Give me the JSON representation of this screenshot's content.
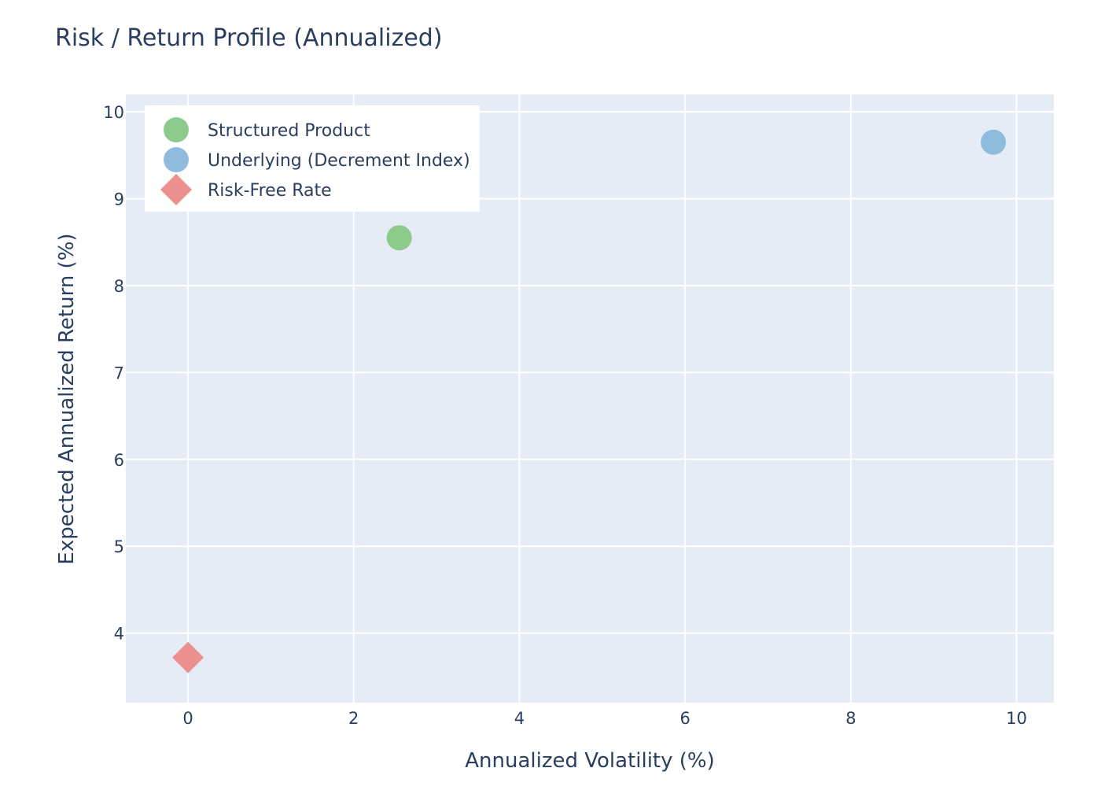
{
  "chart_data": {
    "type": "scatter",
    "title": "Risk / Return Profile (Annualized)",
    "xlabel": "Annualized Volatility (%)",
    "ylabel": "Expected Annualized Return (%)",
    "xlim": [
      -0.75,
      10.45
    ],
    "ylim": [
      3.2,
      10.2
    ],
    "xticks": [
      0,
      2,
      4,
      6,
      8,
      10
    ],
    "yticks": [
      4,
      5,
      6,
      7,
      8,
      9,
      10
    ],
    "grid": true,
    "legend_position": "top-left",
    "series": [
      {
        "name": "Structured Product",
        "marker": "circle",
        "color": "#8ccb8c",
        "points": [
          {
            "x": 2.55,
            "y": 8.55
          }
        ]
      },
      {
        "name": "Underlying (Decrement Index)",
        "marker": "circle",
        "color": "#8fbbdd",
        "points": [
          {
            "x": 9.72,
            "y": 9.65
          }
        ]
      },
      {
        "name": "Risk-Free Rate",
        "marker": "diamond",
        "color": "#ec8f8f",
        "points": [
          {
            "x": 0.0,
            "y": 3.72
          }
        ]
      }
    ]
  },
  "colors": {
    "plot_background": "#e5ecf6",
    "grid": "#ffffff",
    "text": "#2a3f5f"
  }
}
